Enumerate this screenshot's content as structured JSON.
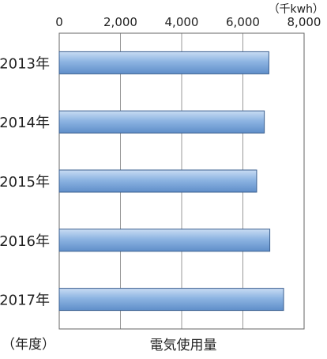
{
  "chart_data": {
    "type": "bar",
    "orientation": "horizontal",
    "title": "",
    "xlabel": "電気使用量",
    "ylabel": "（年度）",
    "unit": "（千kwh）",
    "categories": [
      "2013年",
      "2014年",
      "2015年",
      "2016年",
      "2017年"
    ],
    "values": [
      6850,
      6700,
      6450,
      6880,
      7330
    ],
    "xlim": [
      0,
      8000
    ],
    "xticks": [
      "0",
      "2,000",
      "4,000",
      "6,000",
      "8,000"
    ],
    "grid": true,
    "legend": "none",
    "colors": {
      "bar_fill": "#8db4e2",
      "bar_stroke": "#3b5f8f",
      "axis": "#666666",
      "grid": "#999999"
    }
  }
}
